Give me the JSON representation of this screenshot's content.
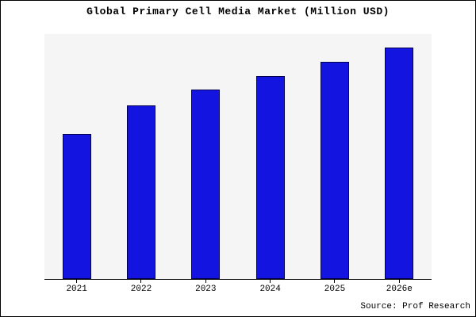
{
  "chart": {
    "title": "Global Primary Cell Media Market (Million USD)",
    "source": "Source: Prof Research"
  },
  "chart_data": {
    "type": "bar",
    "title": "Global Primary Cell Media Market (Million USD)",
    "categories": [
      "2021",
      "2022",
      "2023",
      "2024",
      "2025",
      "2026e"
    ],
    "values": [
      190,
      227,
      247,
      265,
      284,
      302
    ],
    "xlabel": "",
    "ylabel": "",
    "ylim": [
      0,
      320
    ],
    "grid": false,
    "legend": false,
    "annotations": [
      "Source: Prof Research"
    ],
    "colors": {
      "bar_fill": "#1414e0",
      "bar_border": "#00004d",
      "plot_background": "#f5f5f5",
      "frame_border": "#000000"
    }
  }
}
